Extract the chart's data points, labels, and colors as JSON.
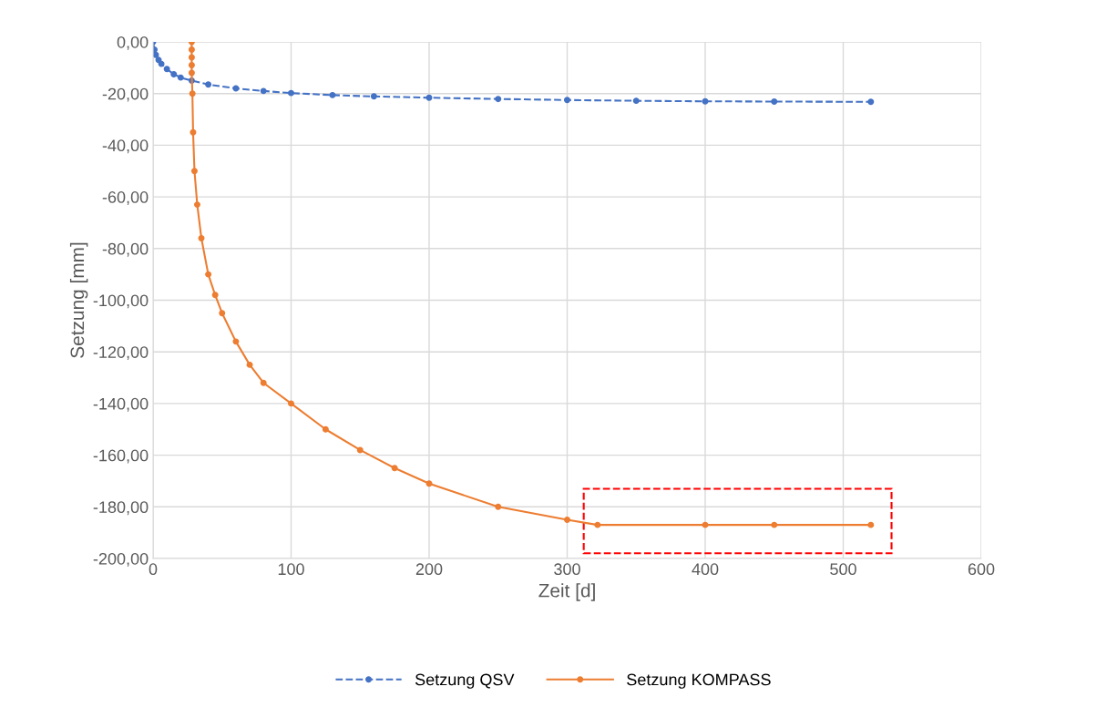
{
  "chart_data": {
    "type": "line",
    "xlabel": "Zeit [d]",
    "ylabel": "Setzung [mm]",
    "xlim": [
      0,
      600
    ],
    "xticks": [
      0,
      100,
      200,
      300,
      400,
      500,
      600
    ],
    "ylim": [
      -200,
      0
    ],
    "yticks": [
      {
        "value": 0,
        "label": "0,00"
      },
      {
        "value": -20,
        "label": "-20,00"
      },
      {
        "value": -40,
        "label": "-40,00"
      },
      {
        "value": -60,
        "label": "-60,00"
      },
      {
        "value": -80,
        "label": "-80,00"
      },
      {
        "value": -100,
        "label": "-100,00"
      },
      {
        "value": -120,
        "label": "-120,00"
      },
      {
        "value": -140,
        "label": "-140,00"
      },
      {
        "value": -160,
        "label": "-160,00"
      },
      {
        "value": -180,
        "label": "-180,00"
      },
      {
        "value": -200,
        "label": "-200,00"
      }
    ],
    "grid": true,
    "legend": "bottom",
    "marker": "circle",
    "series": [
      {
        "name": "Setzung QSV",
        "color": "#4472c4",
        "line_style": "dashed",
        "x": [
          0,
          1,
          2,
          4,
          6,
          10,
          15,
          20,
          28,
          40,
          60,
          80,
          100,
          130,
          160,
          200,
          250,
          300,
          350,
          400,
          450,
          520
        ],
        "values": [
          0,
          -3,
          -5,
          -7,
          -8.5,
          -10.5,
          -12.5,
          -13.8,
          -15,
          -16.5,
          -18,
          -19,
          -19.8,
          -20.6,
          -21.1,
          -21.6,
          -22.1,
          -22.5,
          -22.8,
          -23,
          -23.1,
          -23.2
        ]
      },
      {
        "name": "Setzung KOMPASS",
        "color": "#ed7d31",
        "line_style": "solid",
        "x": [
          28,
          28,
          28,
          28,
          28,
          28.5,
          29,
          30,
          32,
          35,
          40,
          45,
          50,
          60,
          70,
          80,
          100,
          125,
          150,
          175,
          200,
          250,
          300,
          322,
          400,
          450,
          520
        ],
        "values": [
          0,
          -3,
          -6,
          -9,
          -12,
          -20,
          -35,
          -50,
          -63,
          -76,
          -90,
          -98,
          -105,
          -116,
          -125,
          -132,
          -140,
          -150,
          -158,
          -165,
          -171,
          -180,
          -185,
          -187,
          -187,
          -187,
          -187
        ]
      }
    ]
  }
}
